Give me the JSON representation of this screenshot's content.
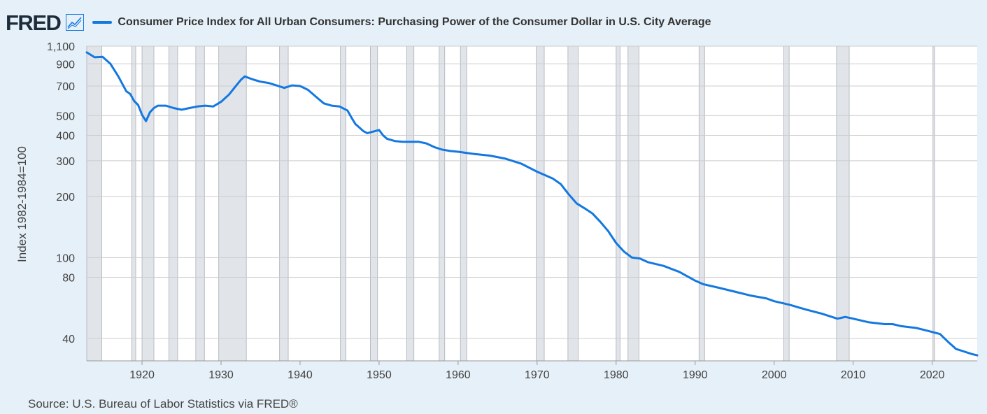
{
  "header": {
    "logo": "FRED",
    "logo_icon": "line-chart-icon",
    "title": "Consumer Price Index for All Urban Consumers: Purchasing Power of the Consumer Dollar in U.S. City Average"
  },
  "source": "Source: U.S. Bureau of Labor Statistics via FRED®",
  "colors": {
    "line": "#1478e0",
    "recession": "#e1e5ea",
    "background": "#e6f0f8",
    "grid": "#cccccc"
  },
  "chart_data": {
    "type": "line",
    "title": "Consumer Price Index for All Urban Consumers: Purchasing Power of the Consumer Dollar in U.S. City Average",
    "ylabel": "Index 1982-1984=100",
    "xlabel": "",
    "yscale": "log",
    "xlim": [
      1913,
      2025.7
    ],
    "ylim": [
      31,
      1100
    ],
    "y_ticks": [
      1100,
      900,
      700,
      500,
      400,
      300,
      200,
      100,
      80,
      40
    ],
    "y_tick_labels": [
      "1,100",
      "900",
      "700",
      "500",
      "400",
      "300",
      "200",
      "100",
      "80",
      "40"
    ],
    "x_ticks": [
      1920,
      1930,
      1940,
      1950,
      1960,
      1970,
      1980,
      1990,
      2000,
      2010,
      2020
    ],
    "x_tick_labels": [
      "1920",
      "1930",
      "1940",
      "1950",
      "1960",
      "1970",
      "1980",
      "1990",
      "2000",
      "2010",
      "2020"
    ],
    "recessions": [
      [
        1913.0,
        1914.9
      ],
      [
        1918.7,
        1919.2
      ],
      [
        1920.0,
        1921.5
      ],
      [
        1923.4,
        1924.5
      ],
      [
        1926.8,
        1927.9
      ],
      [
        1929.7,
        1933.2
      ],
      [
        1937.4,
        1938.5
      ],
      [
        1945.1,
        1945.8
      ],
      [
        1948.9,
        1949.8
      ],
      [
        1953.5,
        1954.4
      ],
      [
        1957.6,
        1958.3
      ],
      [
        1960.3,
        1961.1
      ],
      [
        1969.9,
        1970.9
      ],
      [
        1973.9,
        1975.2
      ],
      [
        1980.0,
        1980.5
      ],
      [
        1981.5,
        1982.9
      ],
      [
        1990.5,
        1991.2
      ],
      [
        2001.2,
        2001.9
      ],
      [
        2007.9,
        2009.5
      ],
      [
        2020.1,
        2020.3
      ]
    ],
    "series": [
      {
        "name": "Purchasing Power of the Consumer Dollar",
        "x": [
          1913,
          1914,
          1915,
          1916,
          1917,
          1918,
          1918.5,
          1919,
          1919.5,
          1920,
          1920.5,
          1921,
          1921.5,
          1922,
          1923,
          1924,
          1925,
          1926,
          1927,
          1928,
          1929,
          1930,
          1931,
          1932,
          1932.5,
          1933,
          1934,
          1935,
          1936,
          1937,
          1938,
          1939,
          1940,
          1941,
          1942,
          1943,
          1944,
          1945,
          1946,
          1946.5,
          1947,
          1948,
          1948.5,
          1949,
          1950,
          1950.5,
          1951,
          1952,
          1953,
          1954,
          1955,
          1956,
          1957,
          1958,
          1959,
          1960,
          1962,
          1964,
          1966,
          1968,
          1970,
          1972,
          1973,
          1974,
          1975,
          1976,
          1977,
          1978,
          1979,
          1980,
          1981,
          1982,
          1983,
          1984,
          1986,
          1988,
          1990,
          1991,
          1993,
          1995,
          1997,
          1999,
          2000,
          2002,
          2004,
          2006,
          2008,
          2008.5,
          2009,
          2010,
          2012,
          2014,
          2015,
          2016,
          2018,
          2019,
          2020,
          2021,
          2022,
          2022.5,
          2023,
          2024,
          2025,
          2025.7
        ],
        "values": [
          1025,
          970,
          975,
          900,
          780,
          660,
          640,
          590,
          565,
          505,
          470,
          520,
          545,
          560,
          560,
          545,
          535,
          545,
          555,
          560,
          555,
          585,
          635,
          710,
          750,
          780,
          755,
          735,
          725,
          705,
          685,
          705,
          700,
          670,
          620,
          575,
          560,
          555,
          530,
          490,
          455,
          420,
          410,
          415,
          425,
          400,
          385,
          375,
          372,
          372,
          372,
          365,
          350,
          340,
          335,
          332,
          324,
          318,
          307,
          290,
          265,
          245,
          230,
          205,
          185,
          175,
          165,
          150,
          135,
          118,
          107,
          100,
          99,
          95,
          91,
          85,
          77,
          74,
          71,
          68,
          65,
          63,
          61,
          58.5,
          55.5,
          53,
          50,
          50.5,
          51,
          50,
          48,
          47,
          47,
          46,
          45,
          44,
          43,
          42,
          38.5,
          37,
          35.5,
          34.5,
          33.5,
          33
        ]
      }
    ]
  }
}
